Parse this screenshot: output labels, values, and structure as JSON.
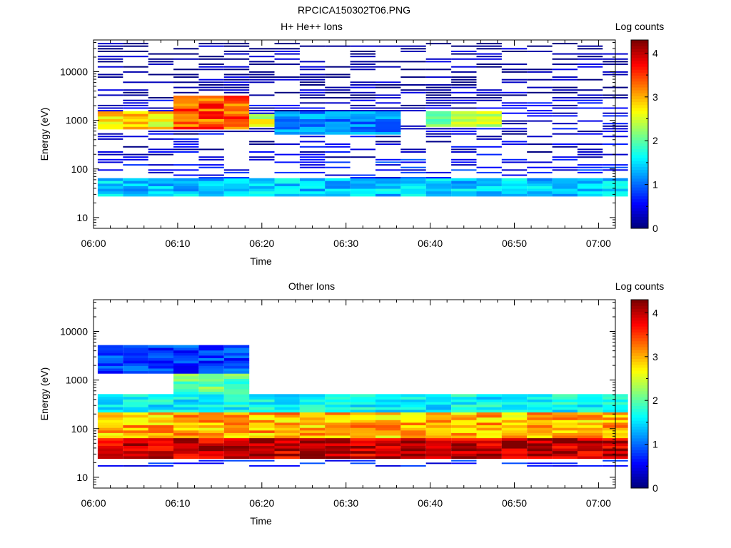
{
  "figure_title": "RPCICA150302T06.PNG",
  "chart_data": [
    {
      "type": "heatmap",
      "title": "H+ He++ Ions",
      "xlabel": "Time",
      "ylabel": "Energy (eV)",
      "y_scale": "log",
      "ylim": [
        6,
        45000
      ],
      "xlim": [
        "06:00",
        "07:02"
      ],
      "x_ticks": [
        "06:00",
        "06:10",
        "06:20",
        "06:30",
        "06:40",
        "06:50",
        "07:00"
      ],
      "y_ticks": [
        "10",
        "100",
        "1000",
        "10000"
      ],
      "colorbar": {
        "label": "Log counts",
        "min": 0,
        "max": 4.3,
        "ticks": [
          "0",
          "1",
          "2",
          "3",
          "4"
        ]
      },
      "time_bins": [
        "06:02",
        "06:05",
        "06:08",
        "06:11",
        "06:14",
        "06:17",
        "06:20",
        "06:23",
        "06:26",
        "06:29",
        "06:32",
        "06:35",
        "06:38",
        "06:41",
        "06:44",
        "06:47",
        "06:50",
        "06:53",
        "06:56",
        "06:59",
        "07:02"
      ],
      "profiles": [
        {
          "from": 0,
          "to": 20,
          "emin": 25,
          "emax": 60,
          "peak": 1.4
        },
        {
          "from": 0,
          "to": 20,
          "emin": 60,
          "emax": 150,
          "peak": 0.6
        },
        {
          "from": 0,
          "to": 20,
          "emin": 150,
          "emax": 2500,
          "peak": 0.35
        },
        {
          "from": 3,
          "to": 5,
          "emin": 600,
          "emax": 3000,
          "peak": 3.4
        },
        {
          "from": 0,
          "to": 2,
          "emin": 600,
          "emax": 1400,
          "peak": 2.8
        },
        {
          "from": 5,
          "to": 6,
          "emin": 700,
          "emax": 1300,
          "peak": 2.6
        },
        {
          "from": 7,
          "to": 11,
          "emin": 500,
          "emax": 1400,
          "peak": 1.1
        },
        {
          "from": 13,
          "to": 15,
          "emin": 700,
          "emax": 1500,
          "peak": 2.3
        },
        {
          "from": 0,
          "to": 20,
          "emin": 2500,
          "emax": 40000,
          "peak": 0.12
        }
      ]
    },
    {
      "type": "heatmap",
      "title": "Other Ions",
      "xlabel": "Time",
      "ylabel": "Energy (eV)",
      "y_scale": "log",
      "ylim": [
        6,
        45000
      ],
      "xlim": [
        "06:00",
        "07:02"
      ],
      "x_ticks": [
        "06:00",
        "06:10",
        "06:20",
        "06:30",
        "06:40",
        "06:50",
        "07:00"
      ],
      "y_ticks": [
        "10",
        "100",
        "1000",
        "10000"
      ],
      "colorbar": {
        "label": "Log counts",
        "min": 0,
        "max": 4.3,
        "ticks": [
          "0",
          "1",
          "2",
          "3",
          "4"
        ]
      },
      "time_bins": [
        "06:02",
        "06:05",
        "06:08",
        "06:11",
        "06:14",
        "06:17",
        "06:20",
        "06:23",
        "06:26",
        "06:29",
        "06:32",
        "06:35",
        "06:38",
        "06:41",
        "06:44",
        "06:47",
        "06:50",
        "06:53",
        "06:56",
        "06:59",
        "07:02"
      ],
      "profiles": [
        {
          "from": 0,
          "to": 20,
          "emin": 22,
          "emax": 60,
          "peak": 4.0
        },
        {
          "from": 0,
          "to": 20,
          "emin": 60,
          "emax": 200,
          "peak": 3.0
        },
        {
          "from": 0,
          "to": 20,
          "emin": 200,
          "emax": 500,
          "peak": 1.6
        },
        {
          "from": 3,
          "to": 5,
          "emin": 500,
          "emax": 1200,
          "peak": 2.0
        },
        {
          "from": 0,
          "to": 5,
          "emin": 1200,
          "emax": 5000,
          "peak": 0.8
        },
        {
          "from": 0,
          "to": 20,
          "emin": 16,
          "emax": 22,
          "peak": 0.6
        }
      ]
    }
  ]
}
